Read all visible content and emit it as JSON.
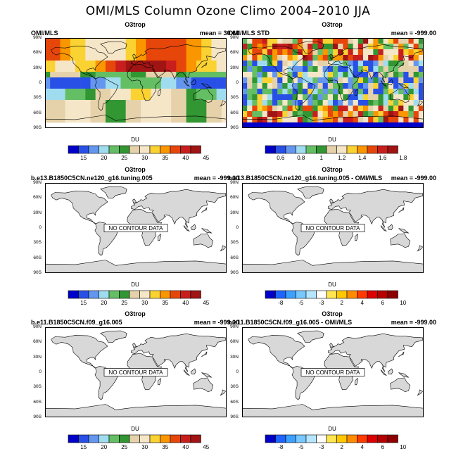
{
  "title": "OMI/MLS Column Ozone Climo 2004–2010 JJA",
  "colors": {
    "c1": [
      "#0000c8",
      "#2850e6",
      "#6496f0",
      "#a0dcf0",
      "#64be64",
      "#329632",
      "#e6d2aa",
      "#f5e6c8",
      "#fad232",
      "#fa9600",
      "#e6460a",
      "#c81e1e",
      "#a01414"
    ],
    "c2": [
      "#0000c8",
      "#2850e6",
      "#6496f0",
      "#a0dcf0",
      "#64be64",
      "#329632",
      "#e6d2aa",
      "#f5e6c8",
      "#fad232",
      "#fa9600",
      "#e6460a",
      "#c81e1e",
      "#a01414"
    ],
    "c3": [
      "#0000c8",
      "#1e64ff",
      "#3ca0ff",
      "#78c8ff",
      "#b4e6ff",
      "#ffffff",
      "#ffe650",
      "#ffc800",
      "#ff8c00",
      "#ff3c00",
      "#dc0000",
      "#b40000",
      "#8c0000"
    ]
  },
  "lat_labels": [
    "90N",
    "60N",
    "30N",
    "0",
    "30S",
    "60S",
    "90S"
  ],
  "chart_data": [
    {
      "type": "heatmap",
      "title": "O3trop",
      "left": "OMI/MLS",
      "right": "mean =  30.60",
      "units": "DU",
      "colorbar": [
        "15",
        "20",
        "25",
        "30",
        "35",
        "40",
        "45"
      ],
      "contour_data": true
    },
    {
      "type": "heatmap",
      "title": "O3trop",
      "left": "OMI/MLS STD",
      "right": "mean = -999.00",
      "units": "DU",
      "colorbar": [
        "0.6",
        "0.8",
        "1",
        "1.2",
        "1.4",
        "1.6",
        "1.8"
      ],
      "contour_data": true
    },
    {
      "type": "heatmap",
      "title": "O3trop",
      "left": "b.e13.B1850C5CN.ne120_g16.tuning.005",
      "right": "mean = -999.00",
      "units": "DU",
      "colorbar": [
        "15",
        "20",
        "25",
        "30",
        "35",
        "40",
        "45"
      ],
      "message": "NO CONTOUR DATA"
    },
    {
      "type": "heatmap",
      "title": "O3trop",
      "left": "b.e13.B1850C5CN.ne120_g16.tuning.005 - OMI/MLS",
      "right": "mean = -999.00",
      "units": "DU",
      "colorbar": [
        "-8",
        "-5",
        "-3",
        "2",
        "4",
        "6",
        "10"
      ],
      "message": "NO CONTOUR DATA"
    },
    {
      "type": "heatmap",
      "title": "O3trop",
      "left": "b.e11.B1850C5CN.f09_g16.005",
      "right": "mean = -999.00",
      "units": "DU",
      "colorbar": [
        "15",
        "20",
        "25",
        "30",
        "35",
        "40",
        "45"
      ],
      "message": "NO CONTOUR DATA"
    },
    {
      "type": "heatmap",
      "title": "O3trop",
      "left": "b.e11.B1850C5CN.f09_g16.005 - OMI/MLS",
      "right": "mean = -999.00",
      "units": "DU",
      "colorbar": [
        "-8",
        "-5",
        "-3",
        "2",
        "4",
        "6",
        "10"
      ],
      "message": "NO CONTOUR DATA"
    }
  ]
}
